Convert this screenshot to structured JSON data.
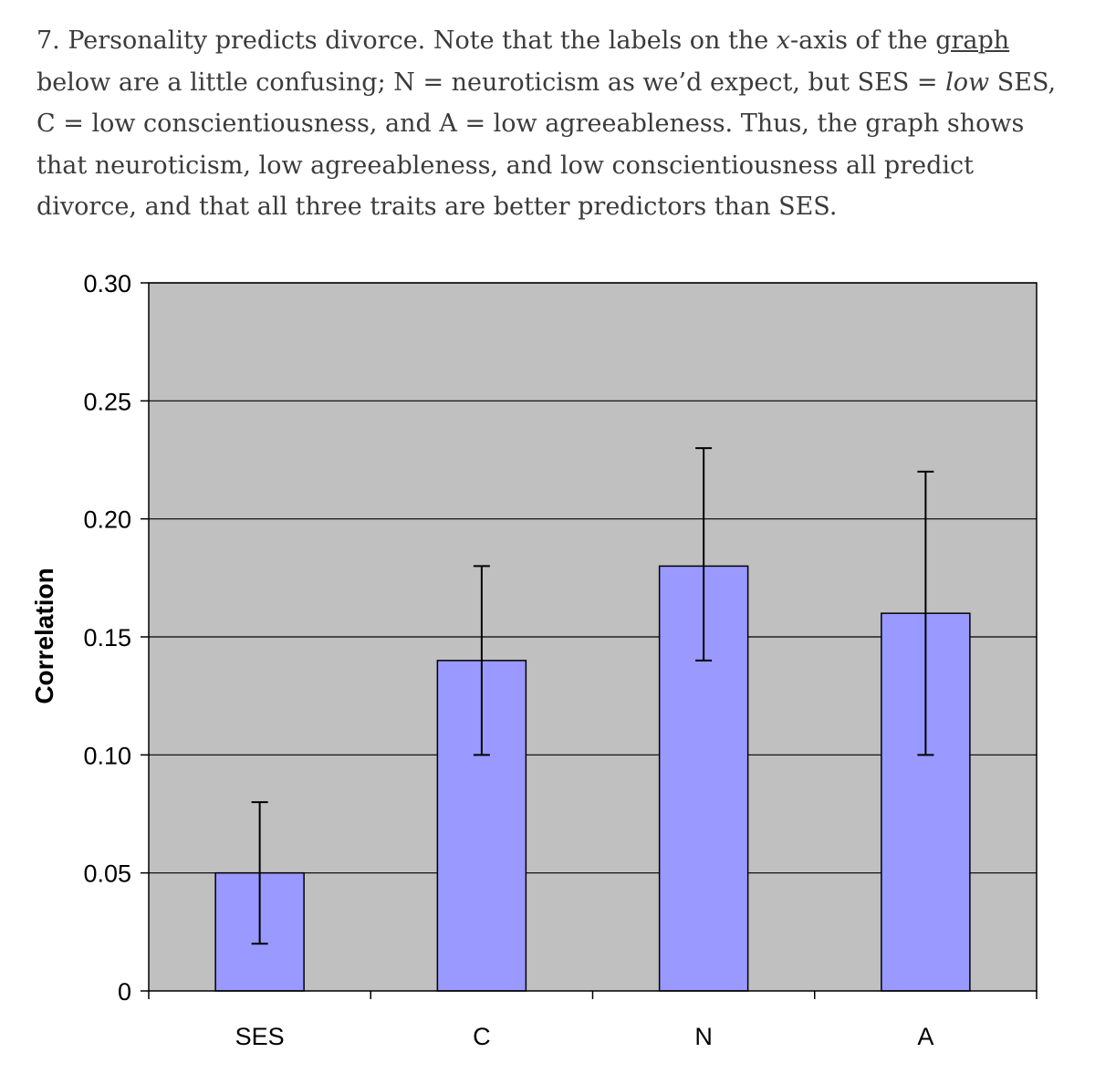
{
  "caption": {
    "p1": "7. Personality predicts divorce. Note that the labels on the ",
    "x_italic": "x",
    "p2": "-axis of the ",
    "link_text": "graph",
    "p3": " below are a little confusing; N = neuroticism as we’d expect, but SES = ",
    "low_italic": "low",
    "p4": " SES, C = low conscientiousness, and A = low agreeableness. Thus, the graph shows that neuroticism, low agreeableness, and low conscientiousness all predict divorce, and that all three traits are better predictors than SES."
  },
  "chart_data": {
    "type": "bar",
    "title": "",
    "xlabel": "",
    "ylabel": "Correlation",
    "categories": [
      "SES",
      "C",
      "N",
      "A"
    ],
    "values": [
      0.05,
      0.14,
      0.18,
      0.16
    ],
    "error_low": [
      0.02,
      0.1,
      0.14,
      0.1
    ],
    "error_high": [
      0.08,
      0.18,
      0.23,
      0.22
    ],
    "ylim": [
      0,
      0.3
    ],
    "yticks": [
      0,
      0.05,
      0.1,
      0.15,
      0.2,
      0.25,
      0.3
    ],
    "ytick_labels": [
      "0",
      "0.05",
      "0.10",
      "0.15",
      "0.20",
      "0.25",
      "0.30"
    ],
    "grid": true,
    "colors": {
      "plot_background": "#c0c0c0",
      "bar_fill": "#9999ff",
      "bar_stroke": "#000000",
      "grid": "#000000"
    }
  }
}
